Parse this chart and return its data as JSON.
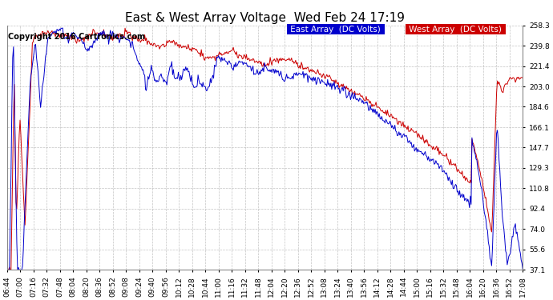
{
  "title": "East & West Array Voltage  Wed Feb 24 17:19",
  "copyright": "Copyright 2016 Cartronics.com",
  "legend_east": "East Array  (DC Volts)",
  "legend_west": "West Array  (DC Volts)",
  "east_color": "#0000cc",
  "west_color": "#cc0000",
  "background_color": "#ffffff",
  "plot_bg_color": "#ffffff",
  "grid_color": "#aaaaaa",
  "yticks": [
    37.1,
    55.6,
    74.0,
    92.4,
    110.8,
    129.3,
    147.7,
    166.1,
    184.6,
    203.0,
    221.4,
    239.8,
    258.3
  ],
  "xtick_labels": [
    "06:44",
    "07:00",
    "07:16",
    "07:32",
    "07:48",
    "08:04",
    "08:20",
    "08:36",
    "08:52",
    "09:08",
    "09:24",
    "09:40",
    "09:56",
    "10:12",
    "10:28",
    "10:44",
    "11:00",
    "11:16",
    "11:32",
    "11:48",
    "12:04",
    "12:20",
    "12:36",
    "12:52",
    "13:08",
    "13:24",
    "13:40",
    "13:56",
    "14:12",
    "14:28",
    "14:44",
    "15:00",
    "15:16",
    "15:32",
    "15:48",
    "16:04",
    "16:20",
    "16:36",
    "16:52",
    "17:08"
  ],
  "ymin": 37.1,
  "ymax": 258.3,
  "title_fontsize": 11,
  "copyright_fontsize": 7,
  "legend_fontsize": 7.5,
  "tick_fontsize": 6.5,
  "linewidth": 0.7
}
